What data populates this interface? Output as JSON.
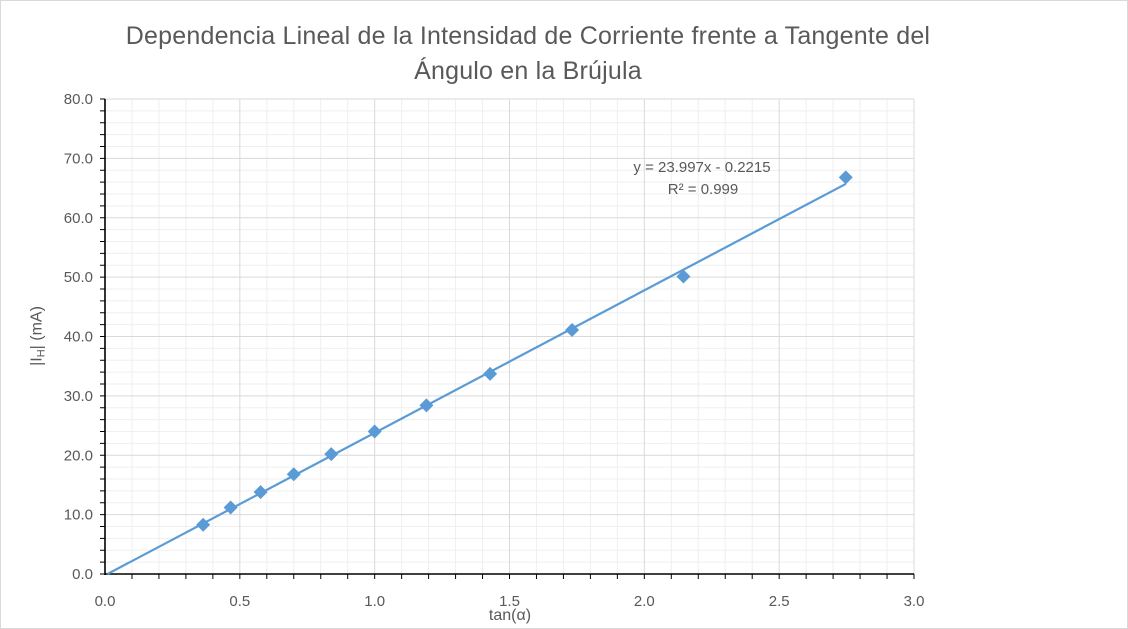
{
  "chart_data": {
    "type": "scatter",
    "title_line1": "Dependencia Lineal de la Intensidad de Corriente frente a Tangente del",
    "title_line2": "Ángulo en la Brújula",
    "xlabel": "tan(α)",
    "ylabel_pre": "|I",
    "ylabel_sub": "H",
    "ylabel_post": "| (mA)",
    "xlim": [
      0,
      3
    ],
    "ylim": [
      0,
      80
    ],
    "x_ticks": [
      "0.0",
      "0.5",
      "1.0",
      "1.5",
      "2.0",
      "2.5",
      "3.0"
    ],
    "y_ticks": [
      "0.0",
      "10.0",
      "20.0",
      "30.0",
      "40.0",
      "50.0",
      "60.0",
      "70.0",
      "80.0"
    ],
    "grid": true,
    "series": [
      {
        "marker": "diamond",
        "color": "#5b9bd5",
        "x": [
          0.364,
          0.466,
          0.577,
          0.7,
          0.839,
          1.0,
          1.192,
          1.428,
          1.732,
          2.145,
          2.747
        ],
        "y": [
          8.3,
          11.2,
          13.8,
          16.8,
          20.2,
          24.0,
          28.4,
          33.7,
          41.1,
          50.1,
          66.8
        ]
      }
    ],
    "trendline": {
      "type": "linear",
      "slope": 23.997,
      "intercept": -0.2215,
      "x_range": [
        0,
        2.747
      ],
      "color": "#5b9bd5",
      "equation": "y = 23.997x - 0.2215",
      "r_squared": "R² = 0.999"
    }
  }
}
